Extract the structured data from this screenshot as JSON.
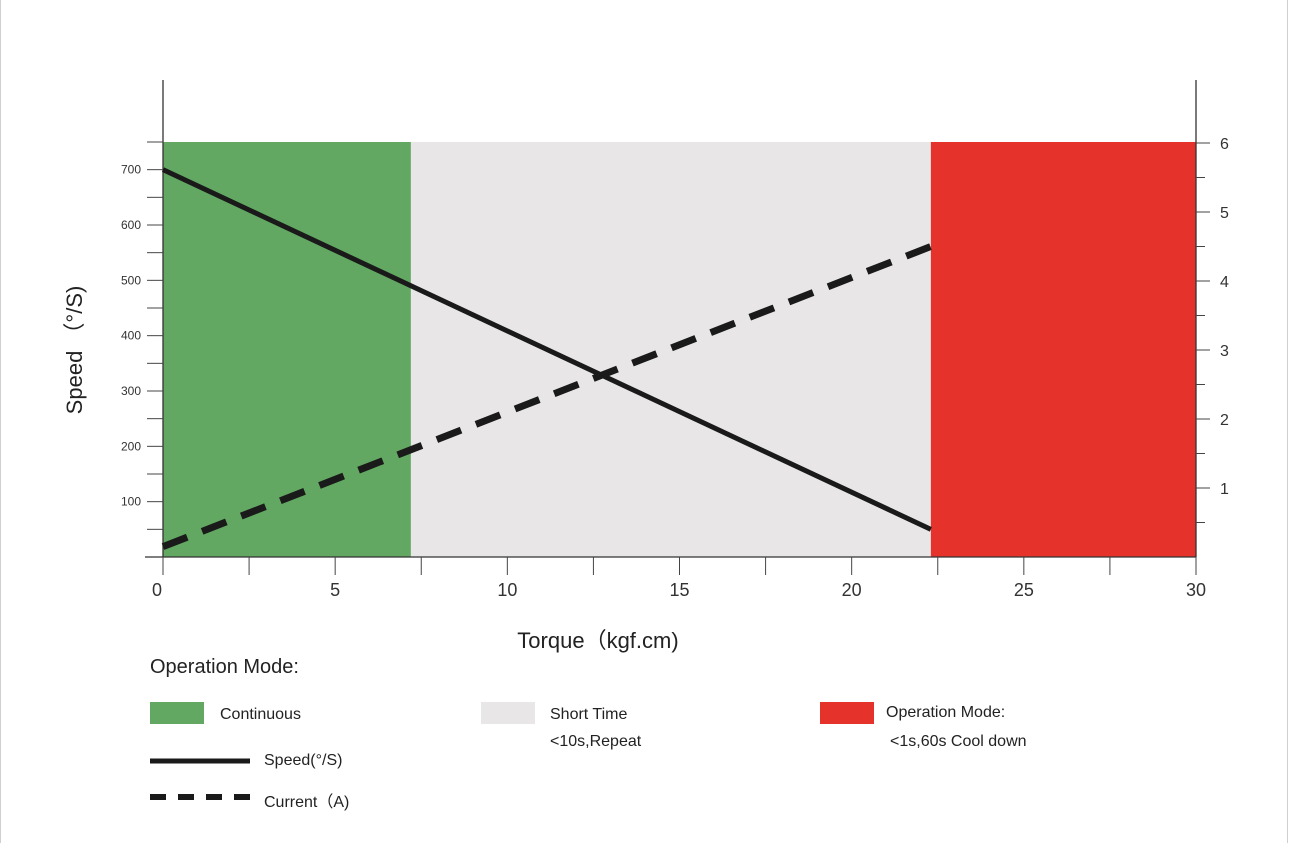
{
  "chart_data": {
    "type": "line",
    "ylabel": "Speed （°/S)",
    "xlabel": "Torque（kgf.cm)",
    "x_ticks": [
      0,
      5,
      10,
      15,
      20,
      25,
      30
    ],
    "y_ticks": [
      100,
      200,
      300,
      400,
      500,
      600,
      700
    ],
    "y2_ticks": [
      1,
      2,
      3,
      4,
      5,
      6
    ],
    "xlim": [
      0,
      30
    ],
    "ylim": [
      0,
      750
    ],
    "y2lim": [
      0,
      6
    ],
    "grid": false,
    "regions": [
      {
        "name": "Continuous",
        "x": [
          0,
          7.2
        ],
        "color": "#62a862"
      },
      {
        "name": "Short Time",
        "x": [
          7.2,
          22.3
        ],
        "color": "#e8e6e6"
      },
      {
        "name": "Operation Mode:",
        "x": [
          22.3,
          30
        ],
        "color": "#e5322a"
      }
    ],
    "series": [
      {
        "name": "Speed(°/S)",
        "axis": "left",
        "style": "solid",
        "color": "#1a1a1a",
        "x": [
          0,
          22.3
        ],
        "y": [
          700,
          50
        ]
      },
      {
        "name": "Current（A)",
        "axis": "right",
        "style": "dashed",
        "color": "#1a1a1a",
        "x": [
          0,
          22.3
        ],
        "y": [
          0.15,
          4.5
        ]
      }
    ]
  },
  "legend": {
    "title": "Operation Mode:",
    "continuous": "Continuous",
    "short_time": "Short Time",
    "short_time_note": "<10s,Repeat",
    "operation_mode": "Operation Mode:",
    "operation_mode_note": "<1s,60s Cool down",
    "speed": "Speed(°/S)",
    "current": "Current（A)"
  }
}
